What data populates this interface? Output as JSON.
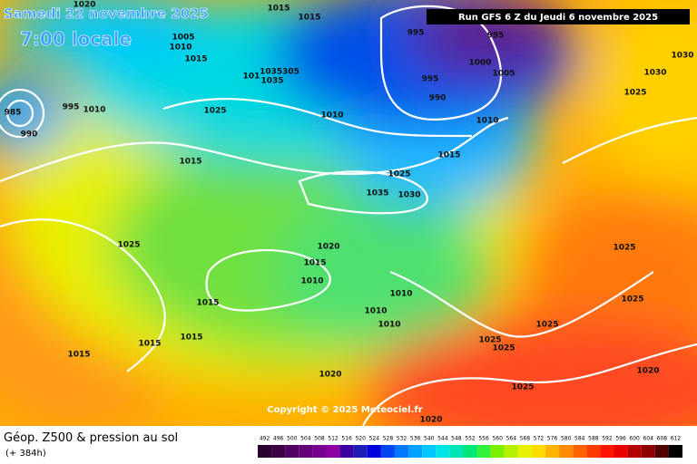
{
  "header": {
    "date": "Samedi 22 novembre 2025",
    "time": "7:00 locale",
    "run": "Run GFS 6 Z du Jeudi 6 novembre 2025"
  },
  "copyright": "Copyright © 2025 Meteociel.fr",
  "footer": {
    "title": "Géop. Z500 & pression au sol",
    "lead": "(+ 384h)"
  },
  "isobar_labels": [
    "1020",
    "1015",
    "1015",
    "1005",
    "1010",
    "1015",
    "1035305",
    "1035",
    "101",
    "995",
    "995",
    "1000",
    "1005",
    "995",
    "990",
    "1010",
    "1015",
    "1030",
    "1025",
    "1030",
    "1025",
    "1010",
    "1015",
    "985",
    "990",
    "995",
    "1010",
    "1025",
    "1035",
    "1030",
    "1025",
    "1020",
    "1015",
    "1010",
    "1015",
    "1010",
    "1010",
    "1010",
    "1025",
    "1025",
    "1025",
    "1025",
    "1025",
    "1015",
    "1015",
    "1015",
    "1020",
    "1020",
    "1025",
    "1020"
  ],
  "scale": {
    "values": [
      492,
      496,
      500,
      504,
      508,
      512,
      516,
      520,
      524,
      528,
      532,
      536,
      540,
      544,
      548,
      552,
      556,
      560,
      564,
      568,
      572,
      576,
      580,
      584,
      588,
      592,
      596,
      600,
      604,
      608,
      612
    ],
    "colors": [
      "#2a0030",
      "#3c0045",
      "#500060",
      "#640078",
      "#780090",
      "#8c00a0",
      "#3c00a0",
      "#1e1eb4",
      "#0000dc",
      "#0046f0",
      "#0078ff",
      "#00a0ff",
      "#00c8ff",
      "#00e6e6",
      "#00e6b4",
      "#00e678",
      "#32f03c",
      "#78f000",
      "#b4f000",
      "#e6f000",
      "#ffdc00",
      "#ffb400",
      "#ff8c00",
      "#ff6400",
      "#ff3c00",
      "#ff1400",
      "#e60000",
      "#b40000",
      "#8c0000",
      "#500000",
      "#000000"
    ]
  }
}
